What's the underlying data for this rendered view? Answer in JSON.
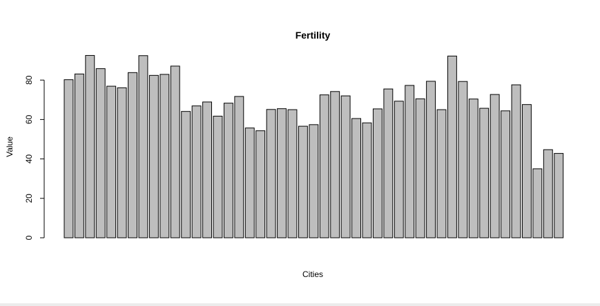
{
  "chart_data": {
    "type": "bar",
    "title": "Fertility",
    "xlabel": "Cities",
    "ylabel": "Value",
    "ylim": [
      0,
      92.5
    ],
    "yticks": [
      0,
      20,
      40,
      60,
      80
    ],
    "grid": false,
    "bar_color": "#bebebe",
    "border_color": "#000000",
    "values": [
      80.2,
      83.1,
      92.5,
      85.8,
      76.9,
      76.1,
      83.8,
      92.4,
      82.4,
      82.9,
      87.1,
      64.1,
      66.9,
      68.9,
      61.7,
      68.3,
      71.7,
      55.7,
      54.3,
      65.1,
      65.5,
      65.0,
      56.6,
      57.4,
      72.5,
      74.2,
      72.0,
      60.5,
      58.3,
      65.4,
      75.5,
      69.3,
      77.3,
      70.5,
      79.4,
      65.0,
      92.2,
      79.3,
      70.4,
      65.7,
      72.7,
      64.4,
      77.6,
      67.6,
      35.0,
      44.7,
      42.8
    ]
  }
}
